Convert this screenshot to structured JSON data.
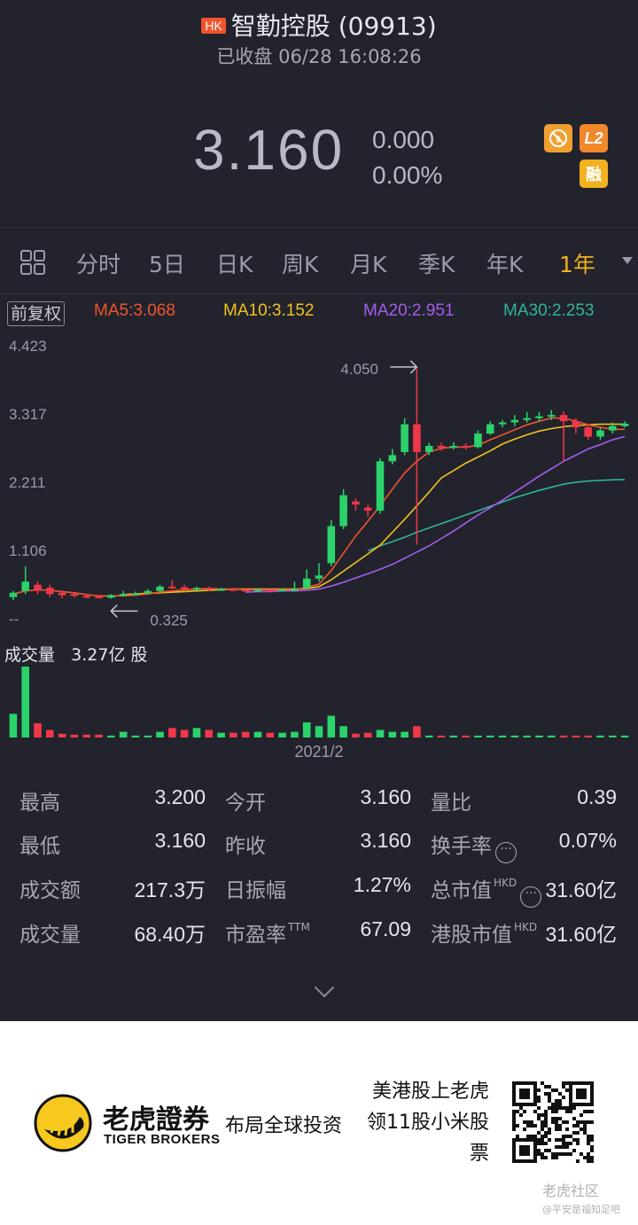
{
  "header": {
    "market_badge": "HK",
    "name": "智勤控股",
    "code": "(09913)",
    "status": "已收盘 06/28 16:08:26"
  },
  "quote": {
    "price": "3.160",
    "change": "0.000",
    "change_pct": "0.00%",
    "badge_l2": "L2",
    "badge_margin": "融"
  },
  "tabs": [
    {
      "label": "分时"
    },
    {
      "label": "5日"
    },
    {
      "label": "日K"
    },
    {
      "label": "周K"
    },
    {
      "label": "月K"
    },
    {
      "label": "季K"
    },
    {
      "label": "年K"
    },
    {
      "label": "1年",
      "active": true
    }
  ],
  "indicators": {
    "adjust": "前复权",
    "ma5": "MA5:3.068",
    "ma10": "MA10:3.152",
    "ma20": "MA20:2.951",
    "ma30": "MA30:2.253"
  },
  "colors": {
    "ma5": "#f0552d",
    "ma10": "#f2c21e",
    "ma20": "#a55cf0",
    "ma30": "#2fb49a",
    "up": "#2bd36b",
    "down": "#f0384a"
  },
  "chart_data": {
    "type": "candlestick",
    "y_ticks": [
      "4.423",
      "3.317",
      "2.211",
      "1.106",
      "--"
    ],
    "ylim": [
      0,
      4.423
    ],
    "high_annotation": "4.050",
    "low_annotation": "0.325",
    "x_label": "2021/2",
    "volume_title": "成交量",
    "volume_value": "3.27亿 股",
    "candles": [
      {
        "o": 0.35,
        "c": 0.42,
        "h": 0.45,
        "l": 0.3
      },
      {
        "o": 0.45,
        "c": 0.6,
        "h": 0.85,
        "l": 0.4
      },
      {
        "o": 0.55,
        "c": 0.45,
        "h": 0.6,
        "l": 0.4
      },
      {
        "o": 0.5,
        "c": 0.4,
        "h": 0.55,
        "l": 0.35
      },
      {
        "o": 0.42,
        "c": 0.38,
        "h": 0.45,
        "l": 0.33
      },
      {
        "o": 0.4,
        "c": 0.38,
        "h": 0.42,
        "l": 0.34
      },
      {
        "o": 0.37,
        "c": 0.36,
        "h": 0.4,
        "l": 0.33
      },
      {
        "o": 0.36,
        "c": 0.35,
        "h": 0.38,
        "l": 0.33
      },
      {
        "o": 0.34,
        "c": 0.38,
        "h": 0.4,
        "l": 0.325
      },
      {
        "o": 0.38,
        "c": 0.4,
        "h": 0.45,
        "l": 0.36
      },
      {
        "o": 0.4,
        "c": 0.41,
        "h": 0.44,
        "l": 0.38
      },
      {
        "o": 0.41,
        "c": 0.45,
        "h": 0.48,
        "l": 0.4
      },
      {
        "o": 0.45,
        "c": 0.52,
        "h": 0.55,
        "l": 0.44
      },
      {
        "o": 0.52,
        "c": 0.51,
        "h": 0.62,
        "l": 0.48
      },
      {
        "o": 0.51,
        "c": 0.48,
        "h": 0.55,
        "l": 0.46
      },
      {
        "o": 0.48,
        "c": 0.5,
        "h": 0.52,
        "l": 0.46
      },
      {
        "o": 0.5,
        "c": 0.47,
        "h": 0.52,
        "l": 0.45
      },
      {
        "o": 0.47,
        "c": 0.48,
        "h": 0.5,
        "l": 0.46
      },
      {
        "o": 0.48,
        "c": 0.47,
        "h": 0.5,
        "l": 0.46
      },
      {
        "o": 0.47,
        "c": 0.46,
        "h": 0.49,
        "l": 0.45
      },
      {
        "o": 0.46,
        "c": 0.47,
        "h": 0.49,
        "l": 0.45
      },
      {
        "o": 0.47,
        "c": 0.46,
        "h": 0.48,
        "l": 0.44
      },
      {
        "o": 0.46,
        "c": 0.47,
        "h": 0.49,
        "l": 0.44
      },
      {
        "o": 0.47,
        "c": 0.48,
        "h": 0.6,
        "l": 0.45
      },
      {
        "o": 0.5,
        "c": 0.65,
        "h": 0.8,
        "l": 0.48
      },
      {
        "o": 0.65,
        "c": 0.7,
        "h": 0.9,
        "l": 0.6
      },
      {
        "o": 0.9,
        "c": 1.5,
        "h": 1.6,
        "l": 0.85
      },
      {
        "o": 1.5,
        "c": 2.0,
        "h": 2.1,
        "l": 1.45
      },
      {
        "o": 1.9,
        "c": 1.85,
        "h": 1.95,
        "l": 1.75
      },
      {
        "o": 1.8,
        "c": 1.75,
        "h": 1.85,
        "l": 1.65
      },
      {
        "o": 1.75,
        "c": 2.55,
        "h": 2.6,
        "l": 1.7
      },
      {
        "o": 2.55,
        "c": 2.65,
        "h": 2.75,
        "l": 2.5
      },
      {
        "o": 2.7,
        "c": 3.15,
        "h": 3.25,
        "l": 2.65
      },
      {
        "o": 3.15,
        "c": 2.7,
        "h": 4.05,
        "l": 1.2
      },
      {
        "o": 2.7,
        "c": 2.8,
        "h": 2.85,
        "l": 2.65
      },
      {
        "o": 2.8,
        "c": 2.78,
        "h": 2.85,
        "l": 2.72
      },
      {
        "o": 2.78,
        "c": 2.8,
        "h": 2.86,
        "l": 2.74
      },
      {
        "o": 2.8,
        "c": 2.78,
        "h": 2.84,
        "l": 2.74
      },
      {
        "o": 2.78,
        "c": 3.0,
        "h": 3.05,
        "l": 2.76
      },
      {
        "o": 3.0,
        "c": 3.15,
        "h": 3.2,
        "l": 2.98
      },
      {
        "o": 3.15,
        "c": 3.18,
        "h": 3.22,
        "l": 3.1
      },
      {
        "o": 3.18,
        "c": 3.22,
        "h": 3.3,
        "l": 3.12
      },
      {
        "o": 3.22,
        "c": 3.25,
        "h": 3.35,
        "l": 3.18
      },
      {
        "o": 3.25,
        "c": 3.28,
        "h": 3.35,
        "l": 3.2
      },
      {
        "o": 3.28,
        "c": 3.3,
        "h": 3.38,
        "l": 3.22
      },
      {
        "o": 3.3,
        "c": 3.2,
        "h": 3.36,
        "l": 2.55
      },
      {
        "o": 3.2,
        "c": 3.1,
        "h": 3.25,
        "l": 3.0
      },
      {
        "o": 3.1,
        "c": 2.95,
        "h": 3.15,
        "l": 2.9
      },
      {
        "o": 2.95,
        "c": 3.05,
        "h": 3.1,
        "l": 2.9
      },
      {
        "o": 3.05,
        "c": 3.12,
        "h": 3.18,
        "l": 3.0
      },
      {
        "o": 3.12,
        "c": 3.16,
        "h": 3.2,
        "l": 3.1
      }
    ],
    "ma5": [
      0.4,
      0.45,
      0.47,
      0.46,
      0.44,
      0.42,
      0.39,
      0.37,
      0.37,
      0.37,
      0.38,
      0.4,
      0.43,
      0.45,
      0.47,
      0.48,
      0.49,
      0.48,
      0.48,
      0.47,
      0.47,
      0.47,
      0.47,
      0.47,
      0.51,
      0.56,
      0.78,
      1.06,
      1.34,
      1.58,
      1.83,
      2.1,
      2.36,
      2.55,
      2.7,
      2.76,
      2.78,
      2.78,
      2.81,
      2.9,
      2.98,
      3.06,
      3.14,
      3.2,
      3.25,
      3.25,
      3.2,
      3.14,
      3.1,
      3.07,
      3.068
    ],
    "ma10": [
      null,
      null,
      null,
      null,
      null,
      null,
      null,
      null,
      null,
      0.39,
      0.4,
      0.41,
      0.42,
      0.43,
      0.44,
      0.45,
      0.46,
      0.47,
      0.48,
      0.48,
      0.48,
      0.48,
      0.48,
      0.48,
      0.49,
      0.52,
      0.63,
      0.77,
      0.91,
      1.05,
      1.19,
      1.4,
      1.61,
      1.83,
      2.05,
      2.28,
      2.4,
      2.52,
      2.62,
      2.72,
      2.83,
      2.91,
      2.98,
      3.04,
      3.08,
      3.11,
      3.13,
      3.14,
      3.15,
      3.15,
      3.152
    ],
    "ma20": [
      null,
      null,
      null,
      null,
      null,
      null,
      null,
      null,
      null,
      null,
      null,
      null,
      null,
      null,
      null,
      null,
      null,
      null,
      null,
      0.43,
      0.44,
      0.44,
      0.45,
      0.45,
      0.46,
      0.48,
      0.53,
      0.59,
      0.66,
      0.73,
      0.8,
      0.88,
      0.98,
      1.08,
      1.18,
      1.3,
      1.42,
      1.55,
      1.68,
      1.8,
      1.92,
      2.05,
      2.18,
      2.31,
      2.43,
      2.55,
      2.65,
      2.75,
      2.82,
      2.9,
      2.951
    ],
    "ma30": [
      null,
      null,
      null,
      null,
      null,
      null,
      null,
      null,
      null,
      null,
      null,
      null,
      null,
      null,
      null,
      null,
      null,
      null,
      null,
      null,
      null,
      null,
      null,
      null,
      null,
      null,
      null,
      null,
      null,
      1.1,
      1.18,
      1.25,
      1.32,
      1.4,
      1.47,
      1.54,
      1.61,
      1.68,
      1.75,
      1.82,
      1.89,
      1.96,
      2.02,
      2.08,
      2.13,
      2.18,
      2.21,
      2.23,
      2.24,
      2.25,
      2.253
    ],
    "volume": [
      2.5,
      7.5,
      1.5,
      0.8,
      0.4,
      0.3,
      0.3,
      0.3,
      0.2,
      0.6,
      0.2,
      0.2,
      0.6,
      1.0,
      0.8,
      1.0,
      0.8,
      0.5,
      0.5,
      0.6,
      0.6,
      0.5,
      0.5,
      0.6,
      1.6,
      1.2,
      2.3,
      1.2,
      0.4,
      0.5,
      0.8,
      0.6,
      0.6,
      1.2,
      0.2,
      0.2,
      0.2,
      0.2,
      0.2,
      0.2,
      0.2,
      0.2,
      0.2,
      0.2,
      0.2,
      0.2,
      0.2,
      0.2,
      0.2,
      0.2,
      0.2
    ]
  },
  "stats": [
    {
      "label": "最高",
      "value": "3.200"
    },
    {
      "label": "今开",
      "value": "3.160"
    },
    {
      "label": "量比",
      "value": "0.39"
    },
    {
      "label": "最低",
      "value": "3.160"
    },
    {
      "label": "昨收",
      "value": "3.160"
    },
    {
      "label": "换手率",
      "value": "0.07%"
    },
    {
      "label": "成交额",
      "value": "217.3万"
    },
    {
      "label": "日振幅",
      "value": "1.27%"
    },
    {
      "label": "总市值",
      "sup": "HKD",
      "value": "31.60亿"
    },
    {
      "label": "成交量",
      "value": "68.40万"
    },
    {
      "label": "市盈率",
      "sup": "TTM",
      "value": "67.09"
    },
    {
      "label": "港股市值",
      "sup": "HKD",
      "value": "31.60亿"
    }
  ],
  "footer": {
    "brand_cn": "老虎證券",
    "brand_en": "TIGER BROKERS",
    "slogan": "布局全球投资",
    "promo": "美港股上老虎领11股小米股票",
    "watermark_main": "老虎社区",
    "watermark_sub": "@平安是福知足吧"
  }
}
